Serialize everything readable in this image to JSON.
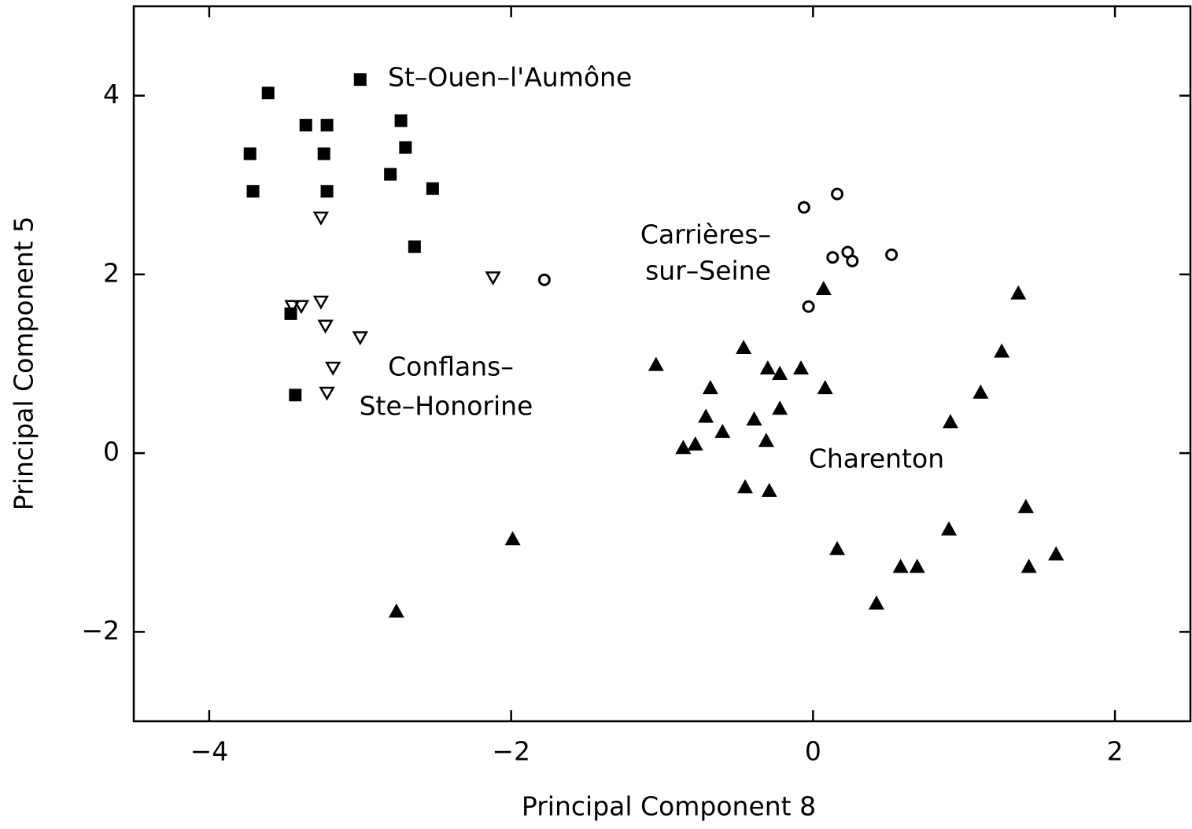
{
  "chart_data": {
    "type": "scatter",
    "xlabel": "Principal Component 8",
    "ylabel": "Principal Component 5",
    "xlim": [
      -4.5,
      2.5
    ],
    "ylim": [
      -3,
      5
    ],
    "xticks": [
      {
        "value": -4,
        "label": "−4"
      },
      {
        "value": -2,
        "label": "−2"
      },
      0,
      2
    ],
    "yticks": [
      {
        "value": -2,
        "label": "−2"
      },
      0,
      2,
      4
    ],
    "color": "#000000",
    "series": [
      {
        "marker": "square",
        "x": [
          -3.0,
          -3.61,
          -3.36,
          -3.22,
          -2.73,
          -3.73,
          -3.24,
          -2.7,
          -2.8,
          -3.71,
          -3.22,
          -2.52,
          -2.64,
          -3.46,
          -3.43
        ],
        "y": [
          4.18,
          4.03,
          3.67,
          3.67,
          3.72,
          3.35,
          3.35,
          3.42,
          3.12,
          2.93,
          2.93,
          2.96,
          2.31,
          1.56,
          0.65
        ]
      },
      {
        "marker": "triangle-down-open",
        "x": [
          -3.26,
          -2.12,
          -3.45,
          -3.39,
          -3.26,
          -3.23,
          -3.0,
          -3.18,
          -3.22
        ],
        "y": [
          2.63,
          1.96,
          1.64,
          1.64,
          1.69,
          1.42,
          1.29,
          0.95,
          0.67
        ]
      },
      {
        "marker": "circle-open",
        "x": [
          -0.06,
          0.16,
          -1.78,
          0.13,
          0.23,
          0.26,
          0.52,
          -0.03
        ],
        "y": [
          2.75,
          2.9,
          1.94,
          2.19,
          2.25,
          2.15,
          2.22,
          1.64
        ]
      },
      {
        "marker": "triangle-up",
        "x": [
          -1.99,
          -2.76,
          -1.04,
          -0.46,
          -0.3,
          -0.22,
          -0.08,
          0.07,
          0.08,
          -0.68,
          -0.22,
          -0.71,
          -0.39,
          -0.6,
          -0.31,
          -0.86,
          -0.78,
          -0.45,
          -0.29,
          0.16,
          0.58,
          0.69,
          0.42,
          0.9,
          0.91,
          1.11,
          1.25,
          1.36,
          1.41,
          1.43,
          1.61
        ],
        "y": [
          -0.96,
          -1.77,
          0.99,
          1.18,
          0.95,
          0.89,
          0.95,
          1.84,
          0.73,
          0.73,
          0.5,
          0.41,
          0.38,
          0.24,
          0.14,
          0.06,
          0.1,
          -0.38,
          -0.42,
          -1.07,
          -1.27,
          -1.27,
          -1.68,
          -0.85,
          0.35,
          0.68,
          1.14,
          1.79,
          -0.6,
          -1.27,
          -1.13
        ]
      }
    ],
    "annotations": [
      "St–Ouen–l'Aumône",
      "Carrières–",
      "sur–Seine",
      "Conflans–",
      "Ste–Honorine",
      "Charenton"
    ]
  }
}
